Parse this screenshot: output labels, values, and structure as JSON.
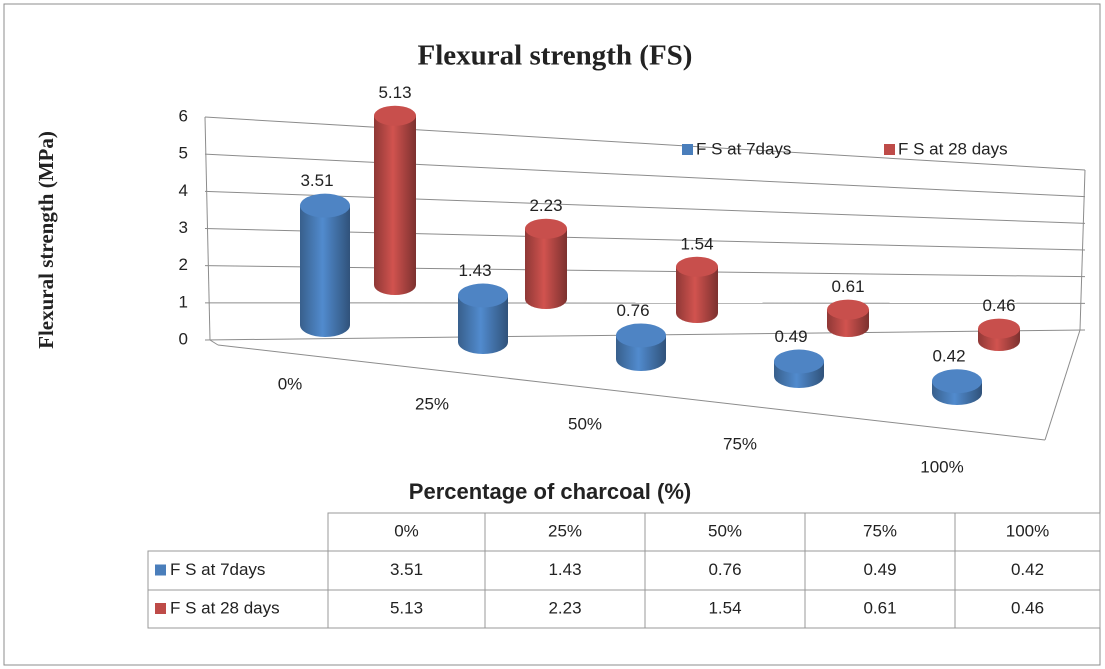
{
  "chart_data": {
    "type": "bar3d",
    "title": "Flexural strength (FS)",
    "ylabel": "Flexural strength (MPa)",
    "xlabel": "Percentage of charcoal (%)",
    "categories": [
      "0%",
      "25%",
      "50%",
      "75%",
      "100%"
    ],
    "series": [
      {
        "name": "F S at 7days",
        "color": "#4a7ebb",
        "values": [
          3.51,
          1.43,
          0.76,
          0.49,
          0.42
        ]
      },
      {
        "name": "F S at 28 days",
        "color": "#be4b48",
        "values": [
          5.13,
          2.23,
          1.54,
          0.61,
          0.46
        ]
      }
    ],
    "ylim": [
      0,
      6
    ],
    "yticks": [
      0,
      1,
      2,
      3,
      4,
      5,
      6
    ],
    "grid": true,
    "legend": "top-right",
    "data_table": true
  }
}
